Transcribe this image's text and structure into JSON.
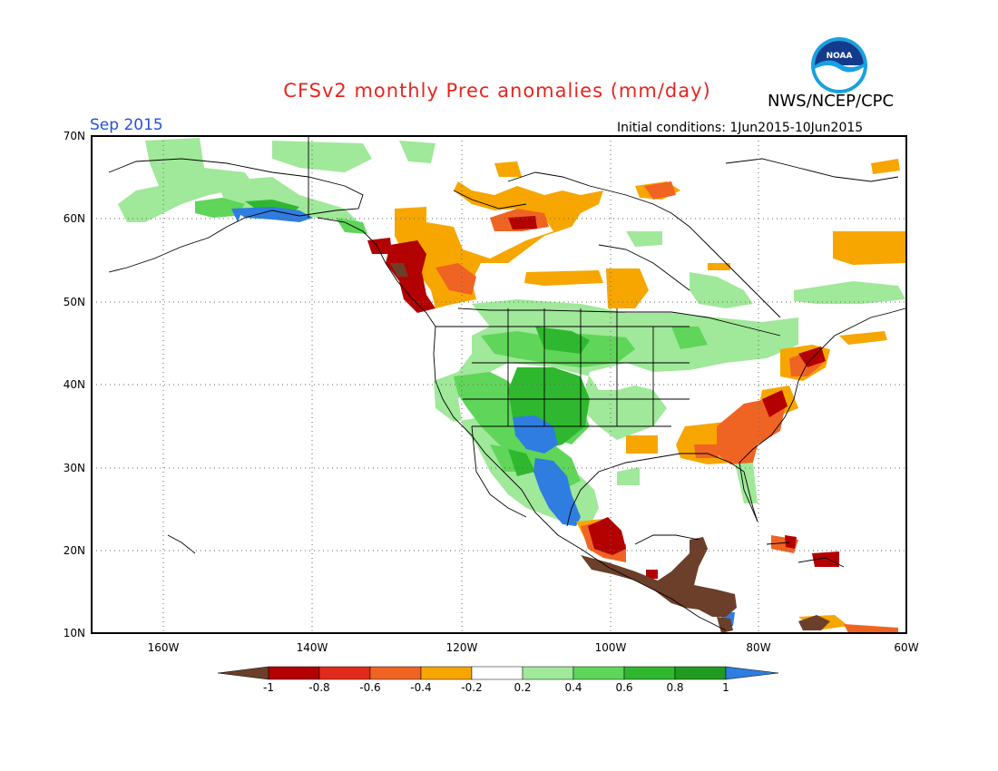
{
  "title": "CFSv2 monthly Prec anomalies (mm/day)",
  "agency": "NWS/NCEP/CPC",
  "logo_text": "NOAA",
  "month": "Sep 2015",
  "initial_conditions": "Initial conditions: 1Jun2015-10Jun2015",
  "lat_labels": [
    "70N",
    "60N",
    "50N",
    "40N",
    "30N",
    "20N",
    "10N"
  ],
  "lon_labels": [
    "160W",
    "140W",
    "120W",
    "100W",
    "80W",
    "60W"
  ],
  "colorbar": {
    "tick_labels": [
      "-1",
      "-0.8",
      "-0.6",
      "-0.4",
      "-0.2",
      "0.2",
      "0.4",
      "0.6",
      "0.8",
      "1"
    ],
    "colors": [
      "#6b3f2a",
      "#b30000",
      "#e22a1c",
      "#f06423",
      "#f7a600",
      "#ffffff",
      "#a0e89a",
      "#5fd55a",
      "#2fb82f",
      "#1f9c1f",
      "#2f7de0"
    ]
  },
  "map_colors": {
    "brown": "#6b3f2a",
    "darkred": "#b30000",
    "red": "#e22a1c",
    "redorange": "#f06423",
    "orange": "#f7a600",
    "lightgreen": "#a0e89a",
    "green": "#5fd55a",
    "midgreen": "#2fb82f",
    "darkgreen": "#1f9c1f",
    "blue": "#2f7de0"
  }
}
